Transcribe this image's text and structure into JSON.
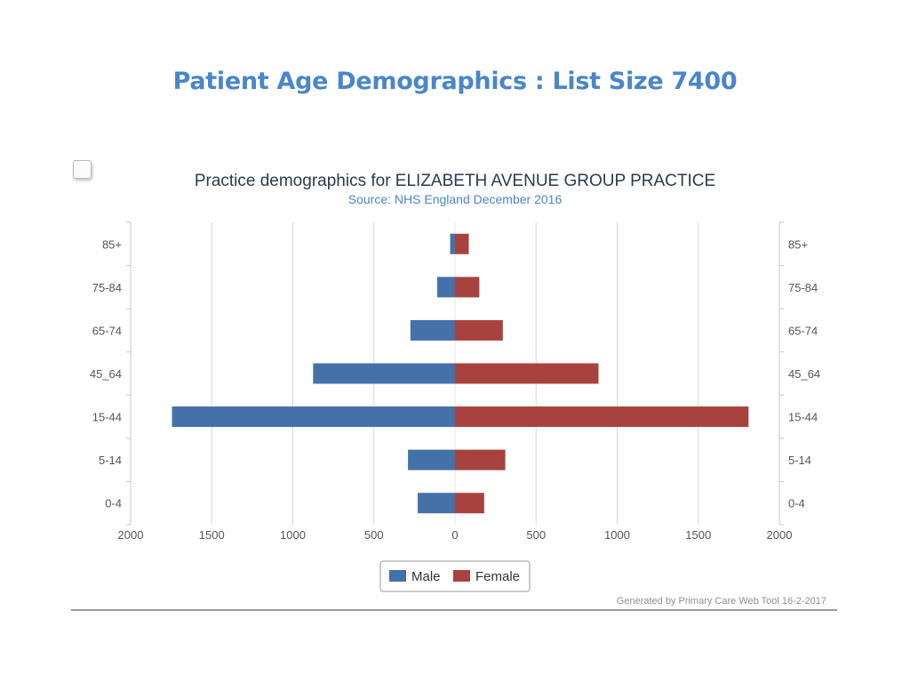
{
  "slide": {
    "title": "Patient Age Demographics : List Size 7400"
  },
  "chart_data": {
    "type": "bar",
    "orientation": "horizontal-population-pyramid",
    "title": "Practice demographics for ELIZABETH AVENUE GROUP PRACTICE",
    "subtitle": "Source: NHS England December 2016",
    "categories": [
      "85+",
      "75-84",
      "65-74",
      "45_64",
      "15-44",
      "5-14",
      "0-4"
    ],
    "series": [
      {
        "name": "Male",
        "color": "#4472a8",
        "values": [
          30,
          110,
          275,
          875,
          1745,
          290,
          230
        ]
      },
      {
        "name": "Female",
        "color": "#a8423f",
        "values": [
          85,
          150,
          295,
          885,
          1810,
          310,
          180
        ]
      }
    ],
    "x_ticks": [
      "2000",
      "1500",
      "1000",
      "500",
      "0",
      "500",
      "1000",
      "1500",
      "2000"
    ],
    "xlim": [
      -2000,
      2000
    ],
    "grid": true,
    "legend_position": "bottom-center",
    "footnote": "Generated by Primary Care Web Tool 16-2-2017"
  }
}
